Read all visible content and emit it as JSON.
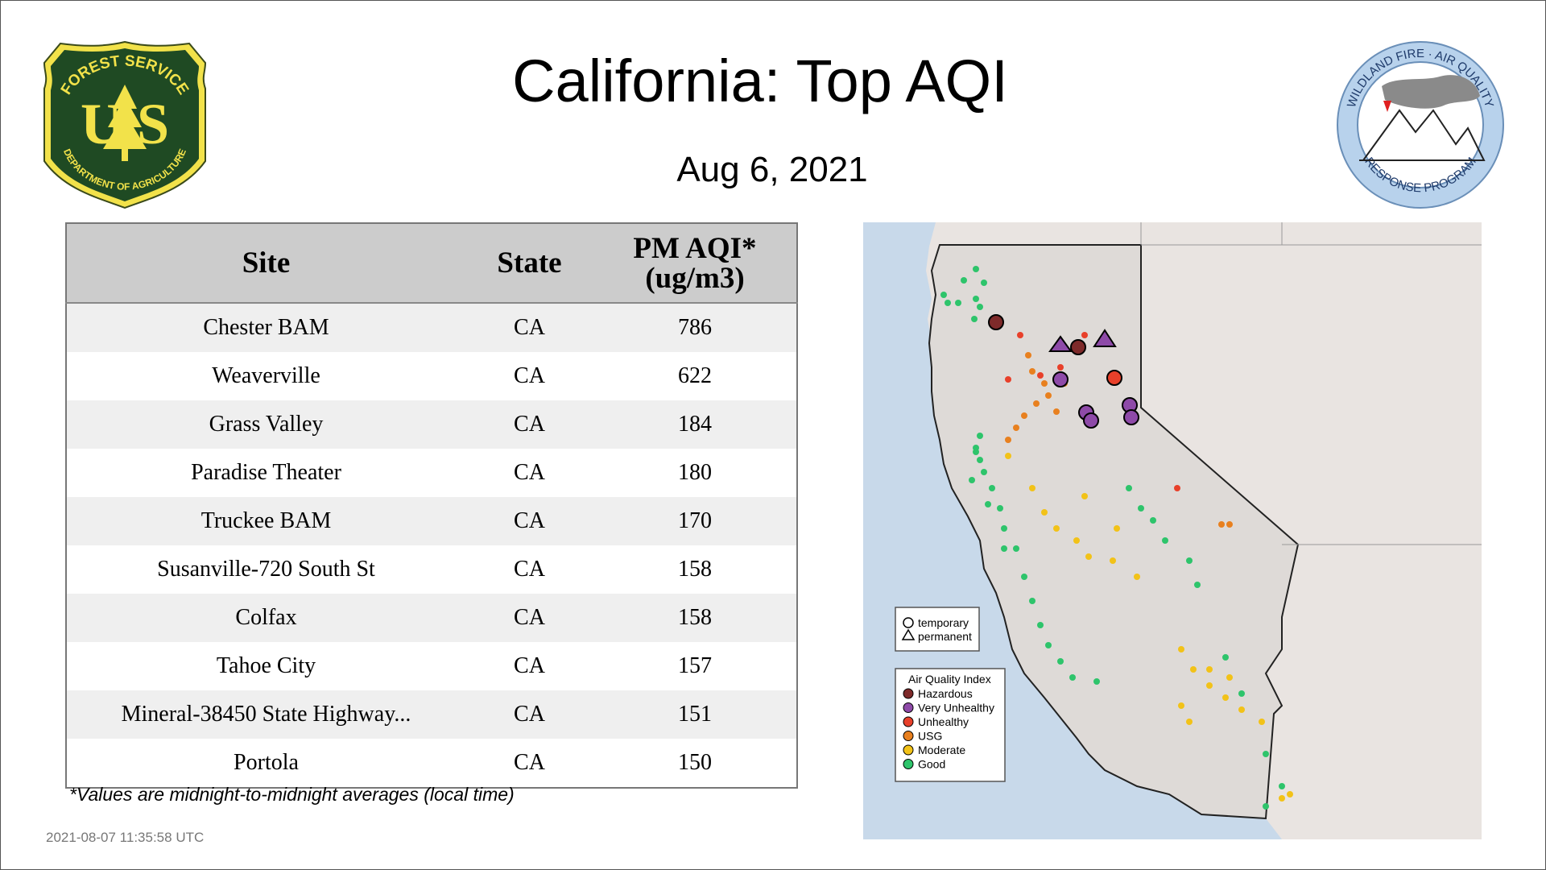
{
  "header": {
    "title": "California: Top AQI",
    "date": "Aug  6, 2021"
  },
  "logos": {
    "left": {
      "top_text": "FOREST SERVICE",
      "letters": "U S",
      "bottom_text": "DEPARTMENT OF AGRICULTURE"
    },
    "right": {
      "top_text": "WILDLAND FIRE · AIR QUALITY",
      "bottom_text": "RESPONSE PROGRAM"
    }
  },
  "table": {
    "headers": {
      "site": "Site",
      "state": "State",
      "aqi_line1": "PM AQI*",
      "aqi_line2": "(ug/m3)"
    },
    "rows": [
      {
        "site": "Chester BAM",
        "state": "CA",
        "aqi": "786"
      },
      {
        "site": "Weaverville",
        "state": "CA",
        "aqi": "622"
      },
      {
        "site": "Grass Valley",
        "state": "CA",
        "aqi": "184"
      },
      {
        "site": "Paradise Theater",
        "state": "CA",
        "aqi": "180"
      },
      {
        "site": "Truckee BAM",
        "state": "CA",
        "aqi": "170"
      },
      {
        "site": "Susanville-720 South St",
        "state": "CA",
        "aqi": "158"
      },
      {
        "site": "Colfax",
        "state": "CA",
        "aqi": "158"
      },
      {
        "site": "Tahoe City",
        "state": "CA",
        "aqi": "157"
      },
      {
        "site": "Mineral-38450 State Highway...",
        "state": "CA",
        "aqi": "151"
      },
      {
        "site": "Portola",
        "state": "CA",
        "aqi": "150"
      }
    ]
  },
  "footnote": "*Values are midnight-to-midnight averages (local time)",
  "timestamp": "2021-08-07 11:35:58 UTC",
  "map": {
    "shape_legend": {
      "temporary": "temporary",
      "permanent": "permanent"
    },
    "aqi_legend": {
      "title": "Air Quality Index",
      "items": [
        {
          "label": "Hazardous",
          "color": "#7e2a2a"
        },
        {
          "label": "Very Unhealthy",
          "color": "#8e4aa8"
        },
        {
          "label": "Unhealthy",
          "color": "#e8402a"
        },
        {
          "label": "USG",
          "color": "#e8801f"
        },
        {
          "label": "Moderate",
          "color": "#f2c218"
        },
        {
          "label": "Good",
          "color": "#2ec46b"
        }
      ]
    }
  },
  "chart_data": {
    "type": "table",
    "title": "California: Top AQI",
    "subtitle": "Aug  6, 2021",
    "columns": [
      "Site",
      "State",
      "PM AQI* (ug/m3)"
    ],
    "rows": [
      [
        "Chester BAM",
        "CA",
        786
      ],
      [
        "Weaverville",
        "CA",
        622
      ],
      [
        "Grass Valley",
        "CA",
        184
      ],
      [
        "Paradise Theater",
        "CA",
        180
      ],
      [
        "Truckee BAM",
        "CA",
        170
      ],
      [
        "Susanville-720 South St",
        "CA",
        158
      ],
      [
        "Colfax",
        "CA",
        158
      ],
      [
        "Tahoe City",
        "CA",
        157
      ],
      [
        "Mineral-38450 State Highway...",
        "CA",
        151
      ],
      [
        "Portola",
        "CA",
        150
      ]
    ]
  }
}
